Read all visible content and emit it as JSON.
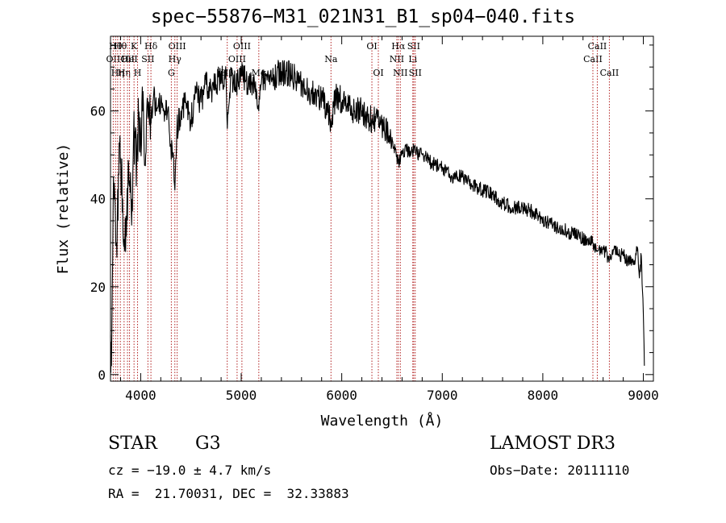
{
  "chart_data": {
    "type": "line",
    "title": "spec−55876−M31_021N31_B1_sp04−040.fits",
    "xlabel": "Wavelength (Å)",
    "ylabel": "Flux (relative)",
    "xlim": [
      3700,
      9100
    ],
    "ylim": [
      -1.5,
      77
    ],
    "xticks": [
      4000,
      5000,
      6000,
      7000,
      8000,
      9000
    ],
    "xtick_labels": [
      "4000",
      "5000",
      "6000",
      "7000",
      "8000",
      "9000"
    ],
    "yticks": [
      0,
      20,
      40,
      60
    ],
    "ytick_labels": [
      "0",
      "20",
      "40",
      "60"
    ],
    "series": [
      {
        "name": "flux",
        "x": [
          3700,
          3710,
          3730,
          3760,
          3790,
          3820,
          3850,
          3880,
          3910,
          3930,
          3960,
          3980,
          4000,
          4020,
          4050,
          4080,
          4100,
          4130,
          4160,
          4200,
          4240,
          4280,
          4300,
          4320,
          4340,
          4360,
          4400,
          4450,
          4500,
          4550,
          4600,
          4650,
          4700,
          4750,
          4800,
          4850,
          4862,
          4900,
          4950,
          5000,
          5050,
          5100,
          5150,
          5175,
          5200,
          5250,
          5300,
          5400,
          5500,
          5600,
          5700,
          5800,
          5890,
          5950,
          6000,
          6100,
          6200,
          6300,
          6400,
          6500,
          6563,
          6600,
          6700,
          6800,
          6900,
          7000,
          7100,
          7200,
          7300,
          7400,
          7500,
          7600,
          7700,
          7800,
          7900,
          8000,
          8100,
          8200,
          8300,
          8400,
          8500,
          8540,
          8600,
          8662,
          8700,
          8800,
          8850,
          8900,
          8940,
          8960,
          8980,
          9000,
          9010
        ],
        "y": [
          9,
          2,
          45,
          30,
          52,
          40,
          28,
          48,
          34,
          56,
          48,
          58,
          55,
          60,
          50,
          62,
          58,
          64,
          60,
          62,
          60,
          58,
          52,
          50,
          42,
          56,
          60,
          62,
          58,
          64,
          62,
          66,
          65,
          66,
          68,
          67,
          56,
          68,
          66,
          68,
          67,
          66,
          65,
          60,
          66,
          68,
          67,
          69,
          68,
          66,
          64,
          63,
          58,
          64,
          62,
          60,
          60,
          58,
          57,
          54,
          48,
          51,
          51,
          50,
          48,
          47,
          45,
          45,
          43,
          42,
          41,
          39,
          38,
          38,
          37,
          35,
          34,
          33,
          32,
          31,
          30,
          28,
          29,
          26,
          28,
          27,
          26,
          25,
          29,
          22,
          27,
          14,
          2
        ]
      }
    ],
    "lines": [
      {
        "w": 3727,
        "label": "OII",
        "row": 1
      },
      {
        "w": 3750,
        "label": "Hθ",
        "row": 0
      },
      {
        "w": 3771,
        "label": "Hη",
        "row": 2
      },
      {
        "w": 3798,
        "label": "Hθ",
        "row": 0
      },
      {
        "w": 3835,
        "label": "Hη",
        "row": 2
      },
      {
        "w": 3869,
        "label": "OII",
        "row": 1
      },
      {
        "w": 3889,
        "label": "HeI",
        "row": 1
      },
      {
        "w": 3934,
        "label": "K",
        "row": 0
      },
      {
        "w": 3969,
        "label": "H",
        "row": 2
      },
      {
        "w": 4072,
        "label": "SII",
        "row": 1
      },
      {
        "w": 4102,
        "label": "Hδ",
        "row": 0
      },
      {
        "w": 4305,
        "label": "G",
        "row": 2
      },
      {
        "w": 4340,
        "label": "Hγ",
        "row": 1
      },
      {
        "w": 4363,
        "label": "OIII",
        "row": 0
      },
      {
        "w": 4861,
        "label": "Hβ",
        "row": 2
      },
      {
        "w": 4959,
        "label": "OIII",
        "row": 1
      },
      {
        "w": 5007,
        "label": "OIII",
        "row": 0
      },
      {
        "w": 5175,
        "label": "Mg",
        "row": 2
      },
      {
        "w": 5893,
        "label": "Na",
        "row": 1
      },
      {
        "w": 6300,
        "label": "OI",
        "row": 0
      },
      {
        "w": 6364,
        "label": "OI",
        "row": 2
      },
      {
        "w": 6548,
        "label": "NII",
        "row": 1
      },
      {
        "w": 6563,
        "label": "Hα",
        "row": 0
      },
      {
        "w": 6583,
        "label": "NII",
        "row": 2
      },
      {
        "w": 6707,
        "label": "Li",
        "row": 1
      },
      {
        "w": 6716,
        "label": "SII",
        "row": 0
      },
      {
        "w": 6731,
        "label": "SII",
        "row": 2
      },
      {
        "w": 8498,
        "label": "CaII",
        "row": 1
      },
      {
        "w": 8542,
        "label": "CaII",
        "row": 0
      },
      {
        "w": 8662,
        "label": "CaII",
        "row": 2
      }
    ]
  },
  "info": {
    "class": "STAR",
    "subclass": "G3",
    "survey": "LAMOST DR3",
    "cz": "cz = −19.0 ± 4.7 km/s",
    "obs_date": "Obs−Date: 20111110",
    "radec": "RA =  21.70031, DEC =  32.33883"
  },
  "colors": {
    "spectrum": "#000000",
    "line_marker": "#b22222",
    "axis": "#000000"
  }
}
